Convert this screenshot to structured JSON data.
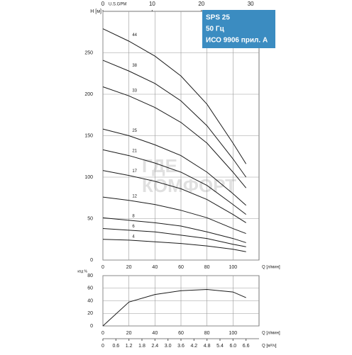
{
  "chart_data": [
    {
      "type": "line",
      "ylabel": "H [м]",
      "xlabel": "Q [л/мин]",
      "x2label": "U.S.GPM",
      "legend_box": [
        "SPS 25",
        "50 Гц",
        "ИСО 9906 прил. A"
      ],
      "watermark": [
        "ГДЕ",
        "КОМФОРТ"
      ],
      "x": [
        0,
        20,
        40,
        60,
        80,
        100,
        110
      ],
      "xlim": [
        0,
        120
      ],
      "xticks": [
        0,
        20,
        40,
        60,
        80,
        100
      ],
      "x2lim": [
        0,
        31.7
      ],
      "x2ticks": [
        0,
        10,
        20,
        30
      ],
      "ylim": [
        0,
        300
      ],
      "yticks": [
        0,
        50,
        100,
        150,
        200,
        250
      ],
      "grid": true,
      "series": [
        {
          "name": "44",
          "color": "#1a1a1a",
          "values": [
            279,
            264,
            246,
            222,
            188,
            141,
            116
          ]
        },
        {
          "name": "38",
          "color": "#1a1a1a",
          "values": [
            241,
            228,
            213,
            192,
            162,
            122,
            100
          ]
        },
        {
          "name": "33",
          "color": "#1a1a1a",
          "values": [
            209,
            198,
            184,
            166,
            141,
            106,
            87
          ]
        },
        {
          "name": "25",
          "color": "#1a1a1a",
          "values": [
            158,
            150,
            139,
            126,
            106,
            80,
            66
          ]
        },
        {
          "name": "21",
          "color": "#1a1a1a",
          "values": [
            133,
            126,
            117,
            106,
            90,
            67,
            55
          ]
        },
        {
          "name": "17",
          "color": "#1a1a1a",
          "values": [
            108,
            102,
            95,
            86,
            73,
            55,
            45
          ]
        },
        {
          "name": "12",
          "color": "#1a1a1a",
          "values": [
            76,
            72,
            67,
            60,
            51,
            38,
            32
          ]
        },
        {
          "name": "8",
          "color": "#1a1a1a",
          "values": [
            51,
            48,
            45,
            41,
            34,
            26,
            21
          ]
        },
        {
          "name": "6",
          "color": "#1a1a1a",
          "values": [
            38,
            36,
            34,
            30,
            26,
            19,
            16
          ]
        },
        {
          "name": "4",
          "color": "#1a1a1a",
          "values": [
            25,
            24,
            22,
            20,
            17,
            13,
            10
          ]
        }
      ]
    },
    {
      "type": "line",
      "ylabel": "кпд %",
      "xlabel": "Q [л/мин]",
      "x2label": "Q [м³/ч]",
      "x": [
        0,
        20,
        40,
        60,
        80,
        100,
        110
      ],
      "xlim": [
        0,
        120
      ],
      "xticks": [
        0,
        20,
        40,
        60,
        80,
        100
      ],
      "x2lim": [
        0,
        7.2
      ],
      "x2ticks": [
        0,
        0.6,
        1.2,
        1.8,
        2.4,
        {
          "value": 3,
          "label": "3.0"
        },
        3.6,
        4.2,
        4.8,
        5.4,
        {
          "value": 6,
          "label": "6.0"
        },
        6.6
      ],
      "ylim": [
        0,
        80
      ],
      "yticks": [
        0,
        20,
        40,
        60,
        80
      ],
      "grid": true,
      "series": [
        {
          "color": "#1a1a1a",
          "values": [
            0,
            38,
            50,
            56,
            58,
            54,
            45
          ]
        }
      ]
    }
  ]
}
